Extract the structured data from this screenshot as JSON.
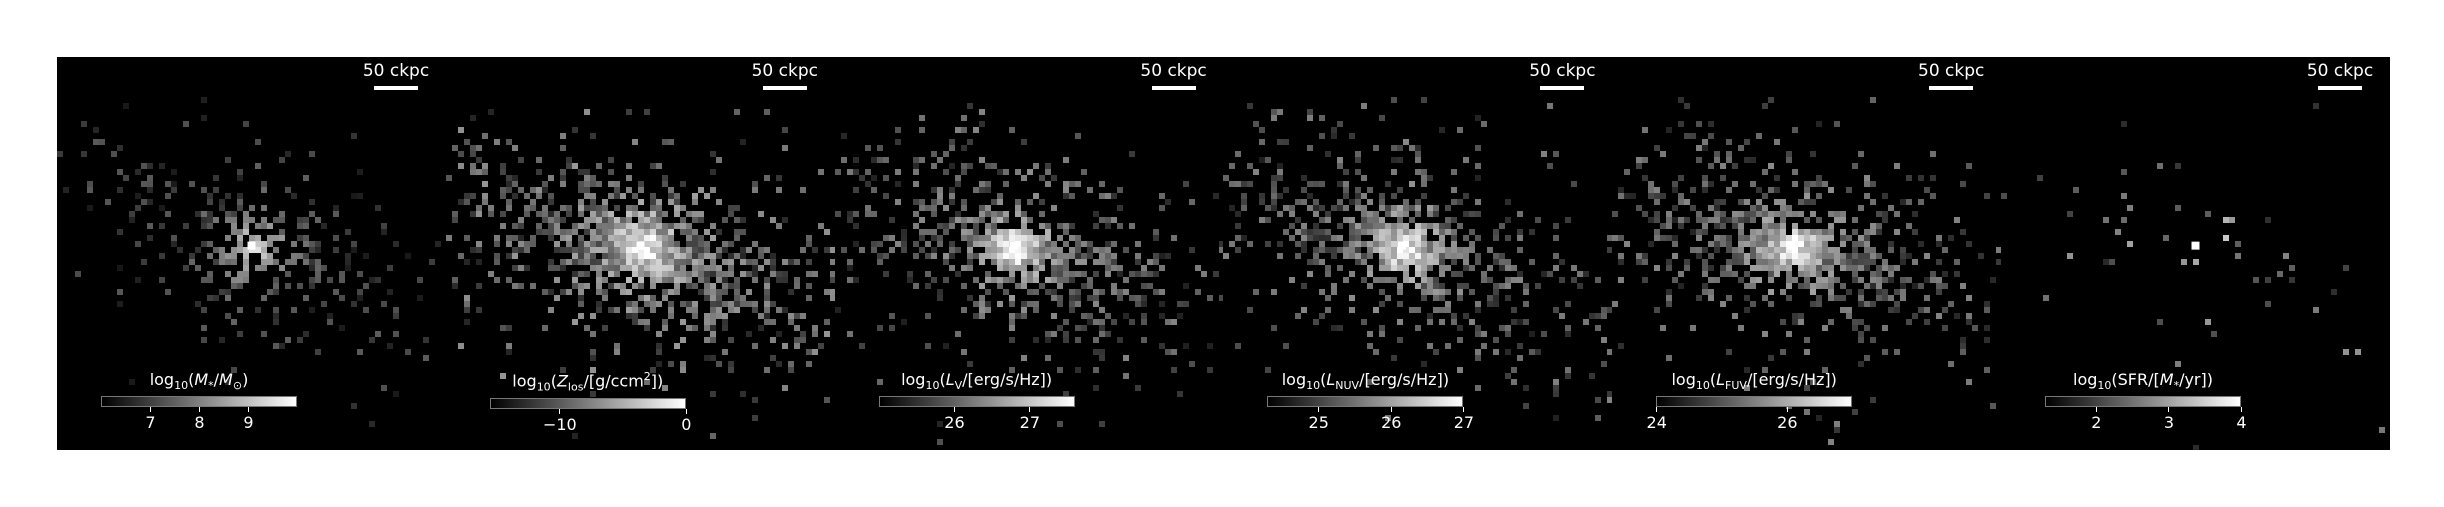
{
  "panels": [
    {
      "scale_label": "50 ckpc",
      "colorbar": {
        "title_html": "log<sub>10</sub>(<i>M</i><sub>*</sub>/<i>M</i><sub>⊙</sub>)",
        "vmin": 6.0,
        "vmax": 10.0,
        "ticks": [
          {
            "value": 7,
            "label": "7"
          },
          {
            "value": 8,
            "label": "8"
          },
          {
            "value": 9,
            "label": "9"
          }
        ]
      },
      "brightness": 0.55,
      "core": [
        0.5,
        0.48
      ],
      "density": 0.35
    },
    {
      "scale_label": "50 ckpc",
      "colorbar": {
        "title_html": "log<sub>10</sub>(<i>Z</i><sub>los</sub>/[g/ccm<sup>2</sup>])",
        "vmin": -15.5,
        "vmax": 0.0,
        "ticks": [
          {
            "value": -10,
            "label": "−10"
          },
          {
            "value": 0,
            "label": "0"
          }
        ]
      },
      "brightness": 0.9,
      "core": [
        0.5,
        0.48
      ],
      "density": 0.85
    },
    {
      "scale_label": "50 ckpc",
      "colorbar": {
        "title_html": "log<sub>10</sub>(<i>L</i><sub>V</sub>/[erg/s/Hz])",
        "vmin": 25.0,
        "vmax": 27.6,
        "ticks": [
          {
            "value": 26,
            "label": "26"
          },
          {
            "value": 27,
            "label": "27"
          }
        ]
      },
      "brightness": 0.8,
      "core": [
        0.46,
        0.48
      ],
      "density": 0.65
    },
    {
      "scale_label": "50 ckpc",
      "colorbar": {
        "title_html": "log<sub>10</sub>(<i>L</i><sub>NUV</sub>/[erg/s/Hz])",
        "vmin": 24.3,
        "vmax": 27.0,
        "ticks": [
          {
            "value": 25,
            "label": "25"
          },
          {
            "value": 26,
            "label": "26"
          },
          {
            "value": 27,
            "label": "27"
          }
        ]
      },
      "brightness": 0.8,
      "core": [
        0.46,
        0.48
      ],
      "density": 0.7
    },
    {
      "scale_label": "50 ckpc",
      "colorbar": {
        "title_html": "log<sub>10</sub>(<i>L</i><sub>FUV</sub>/[erg/s/Hz])",
        "vmin": 24.0,
        "vmax": 27.0,
        "ticks": [
          {
            "value": 24,
            "label": "24"
          },
          {
            "value": 26,
            "label": "26"
          }
        ]
      },
      "brightness": 0.8,
      "core": [
        0.46,
        0.48
      ],
      "density": 0.72
    },
    {
      "scale_label": "50 ckpc",
      "colorbar": {
        "title_html": "log<sub>10</sub>(SFR/[<i>M</i><sub>*</sub>/yr])",
        "vmin": 1.3,
        "vmax": 4.0,
        "ticks": [
          {
            "value": 2,
            "label": "2"
          },
          {
            "value": 3,
            "label": "3"
          },
          {
            "value": 4,
            "label": "4"
          }
        ]
      },
      "brightness": 0.9,
      "core": [
        0.5,
        0.48
      ],
      "density": 0.05
    }
  ]
}
